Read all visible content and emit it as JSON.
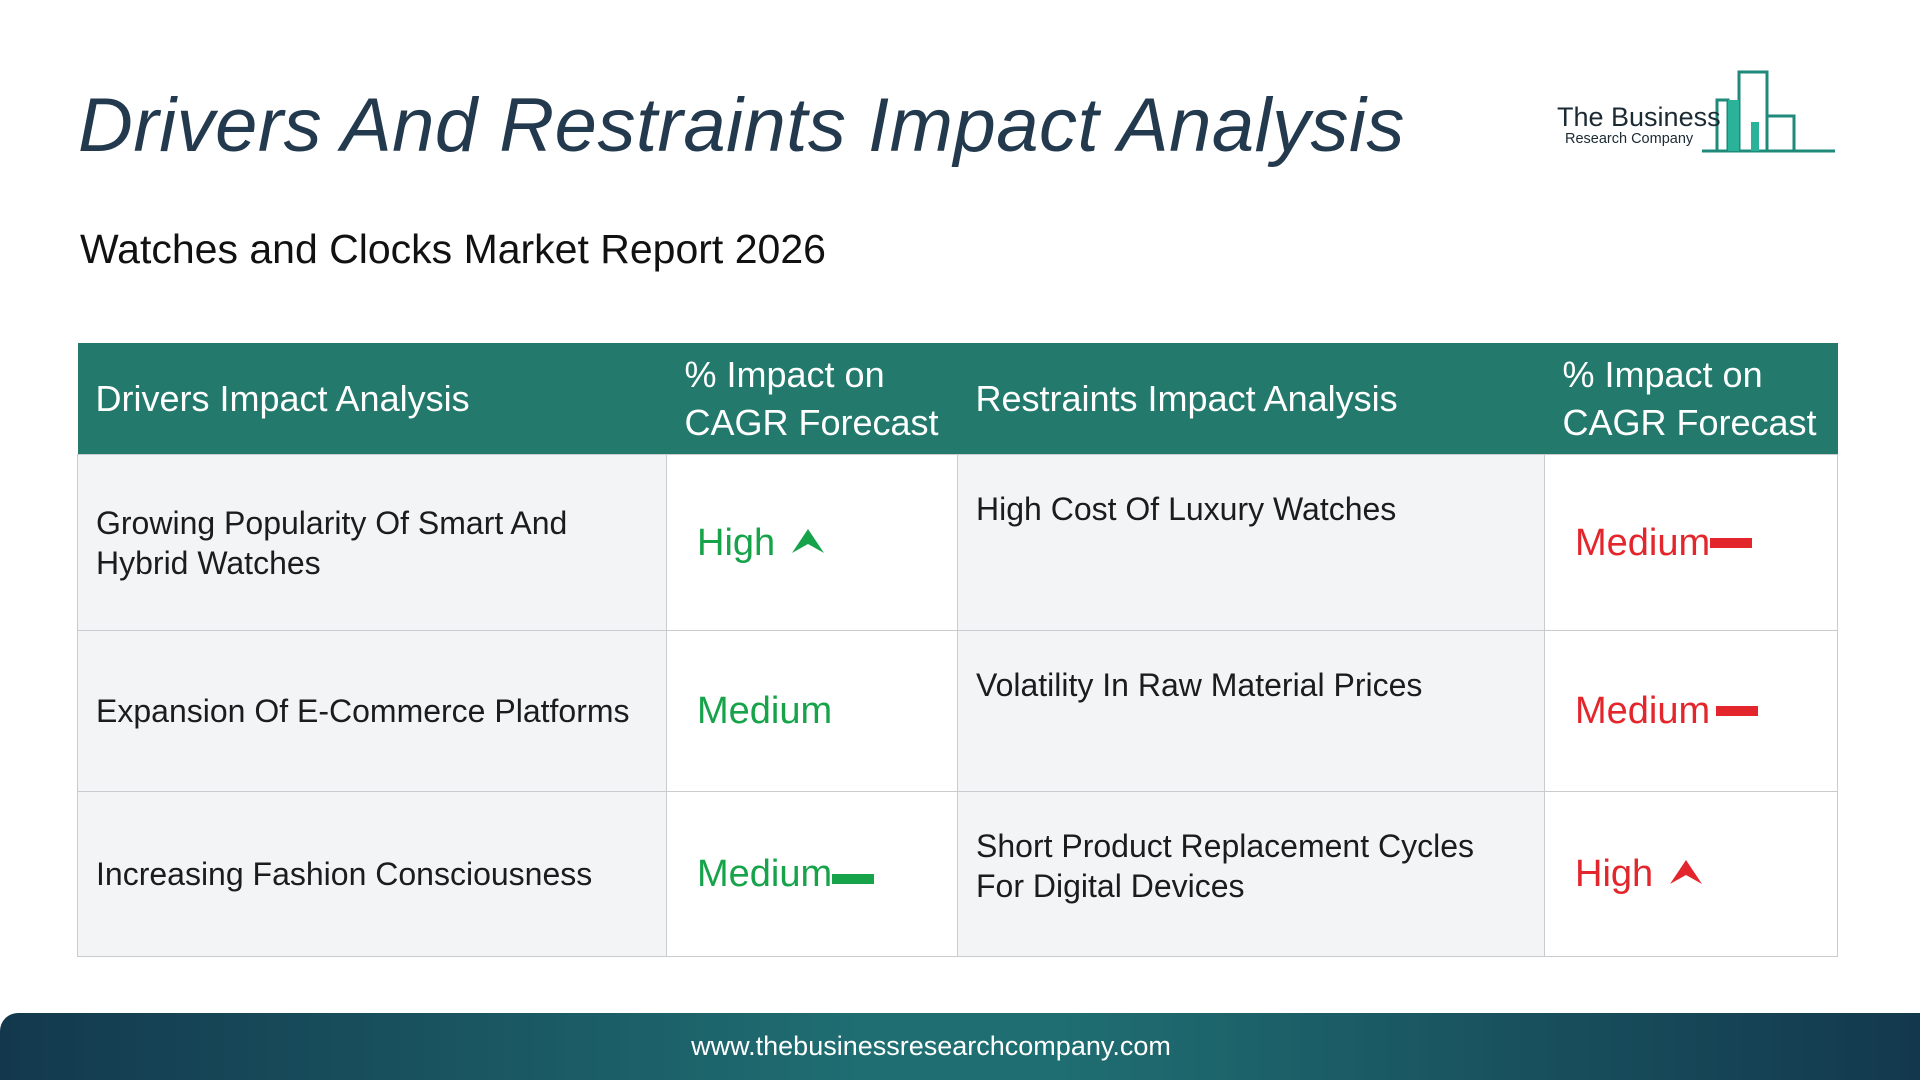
{
  "header": {
    "title": "Drivers And Restraints Impact Analysis",
    "subtitle": "Watches and Clocks Market Report 2026"
  },
  "logo": {
    "name": "The Business",
    "tagline": "Research Company",
    "icon": "bar-chart-logo-icon",
    "color": "#1f8a7a"
  },
  "table": {
    "columns": [
      "Drivers Impact Analysis",
      "% Impact on CAGR Forecast",
      "Restraints Impact Analysis",
      "% Impact on CAGR Forecast"
    ],
    "rows": [
      {
        "driver": "Growing Popularity Of Smart And Hybrid Watches",
        "driver_impact": "High",
        "driver_indicator": "arrow-up-icon",
        "restraint": "High Cost Of Luxury Watches",
        "restraint_impact": "Medium",
        "restraint_indicator": "dash-icon"
      },
      {
        "driver": "Expansion Of E-Commerce Platforms",
        "driver_impact": "Medium",
        "driver_indicator": "none",
        "restraint": "Volatility In Raw Material Prices",
        "restraint_impact": "Medium",
        "restraint_indicator": "dash-icon"
      },
      {
        "driver": "Increasing Fashion Consciousness",
        "driver_impact": "Medium",
        "driver_indicator": "dash-icon",
        "restraint": "Short Product Replacement Cycles For Digital Devices",
        "restraint_impact": "High",
        "restraint_indicator": "arrow-up-icon"
      }
    ]
  },
  "colors": {
    "header_bg": "#237a6c",
    "title": "#233a4e",
    "driver_impact": "#16a34a",
    "restraint_impact": "#e3262c"
  },
  "footer": {
    "url": "www.thebusinessresearchcompany.com"
  }
}
